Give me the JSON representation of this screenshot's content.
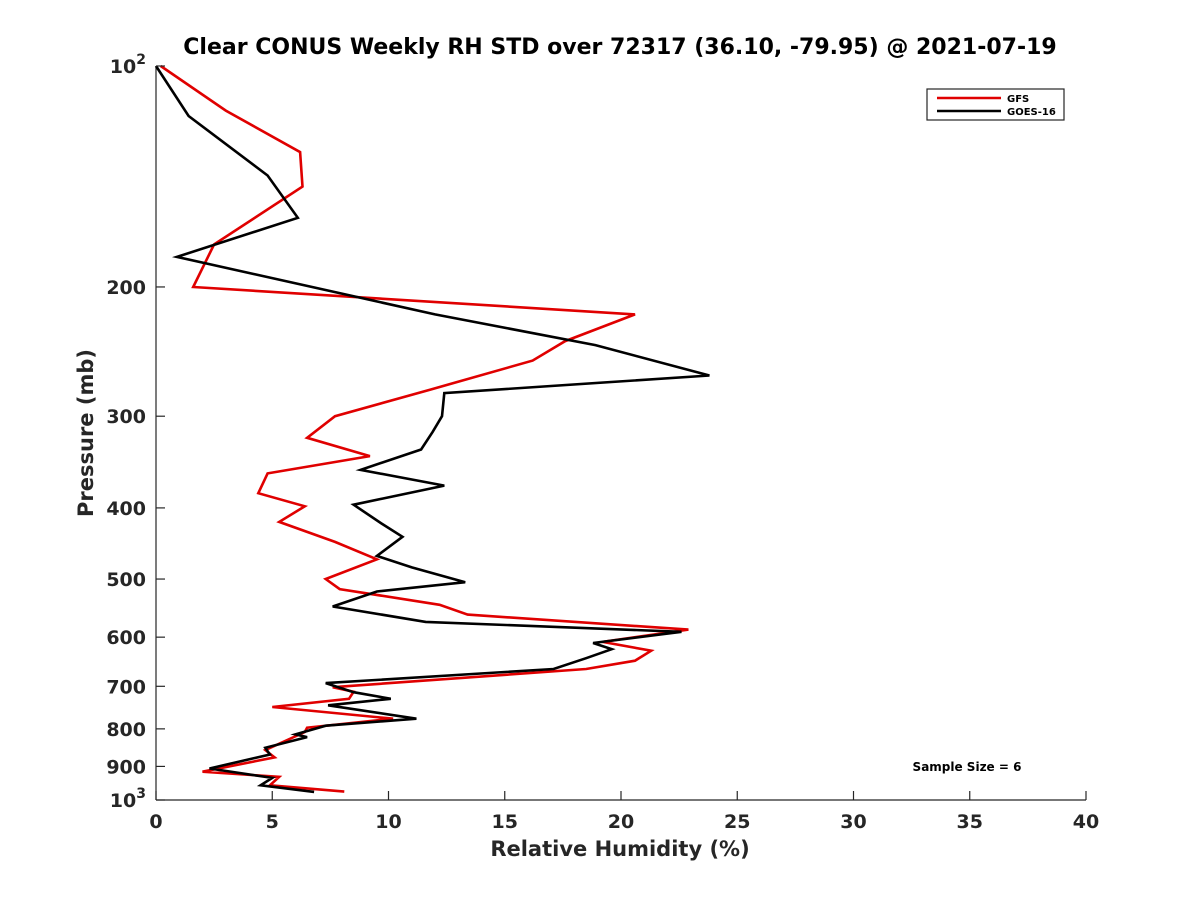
{
  "chart_data": {
    "type": "line",
    "title": "Clear CONUS Weekly RH STD over 72317 (36.10, -79.95) @ 2021-07-19",
    "xlabel": "Relative Humidity (%)",
    "ylabel": "Pressure (mb)",
    "xlim": [
      0,
      40
    ],
    "ylim": [
      100,
      1000
    ],
    "y_scale": "log",
    "y_reversed": true,
    "grid": false,
    "legend_position": "top-right",
    "x_ticks": [
      "0",
      "5",
      "10",
      "15",
      "20",
      "25",
      "30",
      "35",
      "40"
    ],
    "y_ticks": [
      {
        "value": 100,
        "base": "10",
        "exp": "2"
      },
      {
        "value": 200,
        "label": "200"
      },
      {
        "value": 300,
        "label": "300"
      },
      {
        "value": 400,
        "label": "400"
      },
      {
        "value": 500,
        "label": "500"
      },
      {
        "value": 600,
        "label": "600"
      },
      {
        "value": 700,
        "label": "700"
      },
      {
        "value": 800,
        "label": "800"
      },
      {
        "value": 900,
        "label": "900"
      },
      {
        "value": 1000,
        "base": "10",
        "exp": "3"
      }
    ],
    "annotation": "Sample Size = 6",
    "series": [
      {
        "name": "GFS",
        "color": "#e00000",
        "points": [
          [
            0.2,
            100
          ],
          [
            3.0,
            115
          ],
          [
            6.2,
            131
          ],
          [
            6.3,
            146
          ],
          [
            2.5,
            175
          ],
          [
            1.6,
            200
          ],
          [
            20.6,
            218
          ],
          [
            17.6,
            237
          ],
          [
            16.2,
            252
          ],
          [
            11.8,
            276
          ],
          [
            7.7,
            300
          ],
          [
            6.5,
            321
          ],
          [
            9.2,
            340
          ],
          [
            4.8,
            359
          ],
          [
            4.4,
            382
          ],
          [
            6.4,
            398
          ],
          [
            5.3,
            418
          ],
          [
            7.7,
            445
          ],
          [
            9.5,
            470
          ],
          [
            7.3,
            500
          ],
          [
            7.9,
            516
          ],
          [
            12.2,
            542
          ],
          [
            13.4,
            559
          ],
          [
            22.9,
            586
          ],
          [
            19.2,
            609
          ],
          [
            21.3,
            626
          ],
          [
            20.6,
            646
          ],
          [
            18.5,
            663
          ],
          [
            7.6,
            702
          ],
          [
            8.5,
            712
          ],
          [
            8.3,
            728
          ],
          [
            5.0,
            747
          ],
          [
            10.2,
            775
          ],
          [
            6.5,
            797
          ],
          [
            6.4,
            808
          ],
          [
            4.7,
            855
          ],
          [
            5.1,
            875
          ],
          [
            2.0,
            915
          ],
          [
            5.3,
            930
          ],
          [
            4.9,
            955
          ],
          [
            8.1,
            974
          ]
        ]
      },
      {
        "name": "GOES-16",
        "color": "#000000",
        "points": [
          [
            0.0,
            100
          ],
          [
            1.4,
            117
          ],
          [
            4.8,
            141
          ],
          [
            6.1,
            161
          ],
          [
            0.9,
            182
          ],
          [
            12.0,
            218
          ],
          [
            18.9,
            240
          ],
          [
            23.8,
            264
          ],
          [
            12.4,
            279
          ],
          [
            12.3,
            300
          ],
          [
            11.9,
            315
          ],
          [
            11.4,
            333
          ],
          [
            8.8,
            355
          ],
          [
            12.4,
            373
          ],
          [
            8.5,
            396
          ],
          [
            9.7,
            420
          ],
          [
            10.6,
            438
          ],
          [
            9.5,
            465
          ],
          [
            11.0,
            482
          ],
          [
            13.3,
            505
          ],
          [
            9.5,
            520
          ],
          [
            7.6,
            545
          ],
          [
            11.6,
            572
          ],
          [
            22.6,
            590
          ],
          [
            18.8,
            611
          ],
          [
            19.6,
            623
          ],
          [
            18.5,
            641
          ],
          [
            17.1,
            663
          ],
          [
            7.3,
            693
          ],
          [
            8.5,
            713
          ],
          [
            10.1,
            728
          ],
          [
            7.4,
            743
          ],
          [
            11.2,
            775
          ],
          [
            7.3,
            792
          ],
          [
            6.0,
            814
          ],
          [
            6.5,
            821
          ],
          [
            4.7,
            849
          ],
          [
            4.9,
            867
          ],
          [
            2.3,
            906
          ],
          [
            5.0,
            933
          ],
          [
            4.5,
            955
          ],
          [
            6.8,
            975
          ]
        ]
      }
    ]
  }
}
